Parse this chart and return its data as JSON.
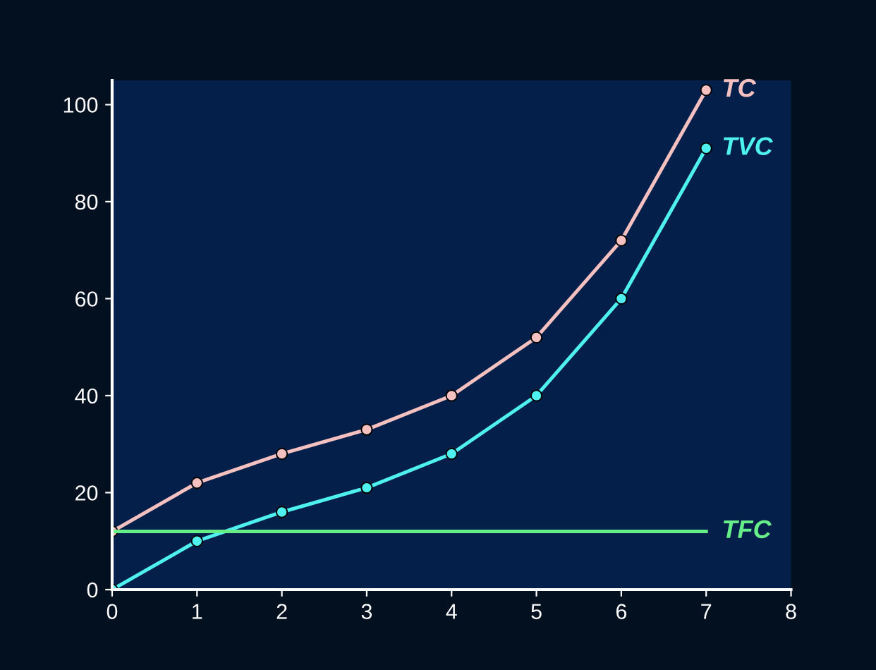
{
  "chart_data": {
    "type": "line",
    "x": [
      0,
      1,
      2,
      3,
      4,
      5,
      6,
      7
    ],
    "series": [
      {
        "name": "TC",
        "color": "#f4c0c0",
        "marker": "circle",
        "values": [
          12,
          22,
          28,
          33,
          40,
          52,
          72,
          103
        ]
      },
      {
        "name": "TVC",
        "color": "#4ff0f0",
        "marker": "circle",
        "values": [
          0,
          10,
          16,
          21,
          28,
          40,
          60,
          91
        ]
      },
      {
        "name": "TFC",
        "color": "#66ee88",
        "marker": "none",
        "x": [
          0,
          7
        ],
        "values": [
          12,
          12
        ]
      }
    ],
    "xlim": [
      0,
      8
    ],
    "xticks": [
      0,
      1,
      2,
      3,
      4,
      5,
      6,
      7,
      8
    ],
    "ylim": [
      0,
      105
    ],
    "yticks": [
      0,
      20,
      40,
      60,
      80,
      100
    ],
    "grid": false,
    "legend": false,
    "line_style": "solid"
  }
}
